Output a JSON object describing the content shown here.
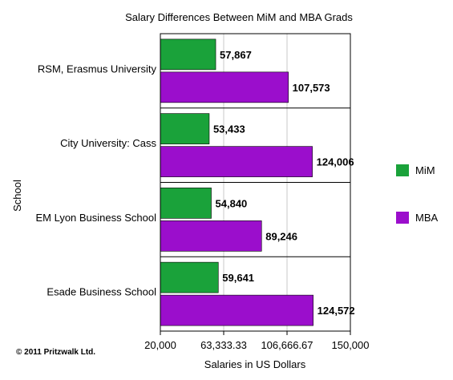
{
  "chart_data": {
    "type": "bar",
    "orientation": "horizontal",
    "title": "Salary Differences Between MiM and MBA Grads",
    "xlabel": "Salaries in US Dollars",
    "ylabel": "School",
    "categories": [
      "RSM, Erasmus University",
      "City University: Cass",
      "EM Lyon Business School",
      "Esade Business School"
    ],
    "series": [
      {
        "name": "MiM",
        "color": "#1aa23a",
        "values": [
          57867,
          53433,
          54840,
          59641
        ],
        "labels": [
          "57,867",
          "53,433",
          "54,840",
          "59,641"
        ]
      },
      {
        "name": "MBA",
        "color": "#9b0ecc",
        "values": [
          107573,
          124006,
          89246,
          124572
        ],
        "labels": [
          "107,573",
          "124,006",
          "89,246",
          "124,572"
        ]
      }
    ],
    "xlim": [
      20000,
      150000
    ],
    "xticks": [
      20000,
      63333.33,
      106666.67,
      150000
    ],
    "xtick_labels": [
      "20,000",
      "63,333.33",
      "106,666.67",
      "150,000"
    ],
    "grid": true,
    "legend_position": "right"
  },
  "copyright": "© 2011 Pritzwalk Ltd."
}
